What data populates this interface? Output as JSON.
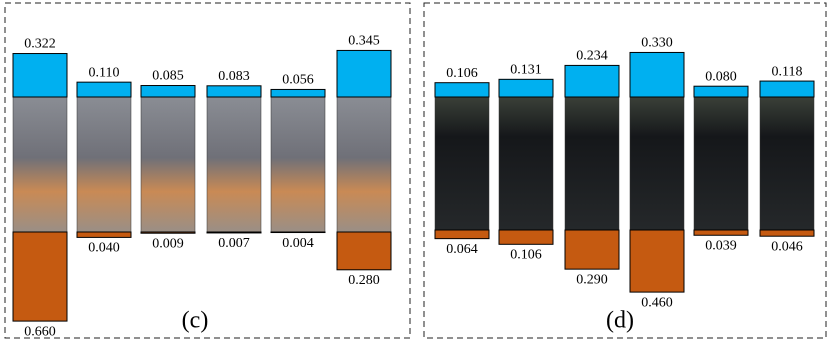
{
  "chart_data": [
    {
      "type": "diverging-bar",
      "label": "(c)",
      "series": [
        {
          "color": "#00b0f0",
          "values": [
            0.322,
            0.11,
            0.085,
            0.083,
            0.056,
            0.345
          ],
          "value_labels": [
            "0.322",
            "0.110",
            "0.085",
            "0.083",
            "0.056",
            "0.345"
          ]
        },
        {
          "color": "#c55a11",
          "values": [
            0.66,
            0.04,
            0.009,
            0.007,
            0.004,
            0.28
          ],
          "value_labels": [
            "0.660",
            "0.040",
            "0.009",
            "0.007",
            "0.004",
            "0.280"
          ]
        }
      ]
    },
    {
      "type": "diverging-bar",
      "label": "(d)",
      "series": [
        {
          "color": "#00b0f0",
          "values": [
            0.106,
            0.131,
            0.234,
            0.33,
            0.08,
            0.118
          ],
          "value_labels": [
            "0.106",
            "0.131",
            "0.234",
            "0.330",
            "0.080",
            "0.118"
          ]
        },
        {
          "color": "#c55a11",
          "values": [
            0.064,
            0.106,
            0.29,
            0.46,
            0.039,
            0.046
          ],
          "value_labels": [
            "0.064",
            "0.106",
            "0.290",
            "0.460",
            "0.039",
            "0.046"
          ]
        }
      ]
    }
  ]
}
